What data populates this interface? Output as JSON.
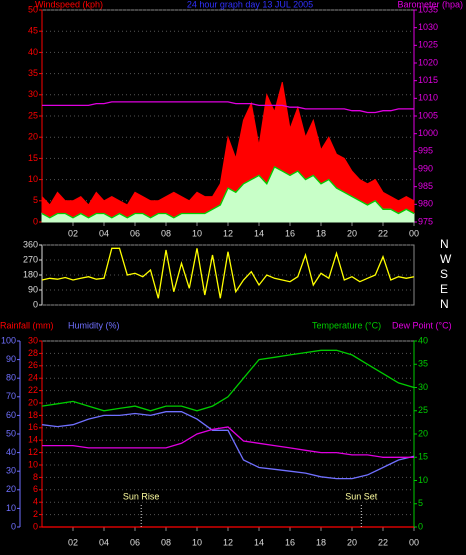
{
  "chart_data": [
    {
      "type": "line",
      "title": "24 hour graph day 13 JUL 2005",
      "ylabel": "Windspeed (kph)",
      "y2label": "Barometer (hpa)",
      "x": [
        0,
        0.5,
        1,
        1.5,
        2,
        2.5,
        3,
        3.5,
        4,
        4.5,
        5,
        5.5,
        6,
        6.5,
        7,
        7.5,
        8,
        8.5,
        9,
        9.5,
        10,
        10.5,
        11,
        11.5,
        12,
        12.5,
        13,
        13.5,
        14,
        14.5,
        15,
        15.5,
        16,
        16.5,
        17,
        17.5,
        18,
        18.5,
        19,
        19.5,
        20,
        20.5,
        21,
        21.5,
        22,
        22.5,
        23,
        23.5,
        24
      ],
      "xlim": [
        0,
        24
      ],
      "xticks": [
        {
          "value": 2,
          "label": "02"
        },
        {
          "value": 4,
          "label": "04"
        },
        {
          "value": 6,
          "label": "06"
        },
        {
          "value": 8,
          "label": "08"
        },
        10,
        12,
        14,
        16,
        18,
        20,
        22,
        {
          "value": 24,
          "label": "00"
        }
      ],
      "ylim": [
        0,
        50
      ],
      "yticks": [
        0,
        5,
        10,
        15,
        20,
        25,
        30,
        35,
        40,
        45,
        50
      ],
      "y2lim": [
        975,
        1035
      ],
      "y2ticks": [
        975,
        980,
        985,
        990,
        995,
        1000,
        1005,
        1010,
        1015,
        1020,
        1025,
        1030,
        1035
      ],
      "grid": true,
      "series": [
        {
          "color": "#ff0000",
          "fill": true,
          "values": [
            6,
            4,
            7,
            5,
            5,
            6,
            4,
            7,
            5,
            6,
            5,
            4,
            7,
            6,
            5,
            5,
            6,
            7,
            6,
            5,
            7,
            6,
            6,
            9,
            20,
            15,
            24,
            28,
            18,
            30,
            26,
            33,
            22,
            27,
            20,
            24,
            17,
            20,
            16,
            15,
            12,
            10,
            9,
            10,
            7,
            6,
            5,
            6,
            5
          ]
        },
        {
          "color": "#c8ffc8",
          "fill": true,
          "values": [
            2,
            1,
            2,
            2,
            1,
            2,
            1,
            2,
            2,
            1,
            2,
            1,
            2,
            2,
            1,
            2,
            2,
            1,
            2,
            2,
            2,
            2,
            3,
            4,
            8,
            7,
            9,
            10,
            11,
            9,
            13,
            12,
            11,
            12,
            10,
            11,
            9,
            10,
            8,
            7,
            6,
            5,
            4,
            5,
            3,
            3,
            2,
            3,
            2
          ]
        },
        {
          "color": "#00cc00",
          "values": [
            2,
            1,
            2,
            2,
            1,
            2,
            1,
            2,
            2,
            1,
            2,
            1,
            2,
            2,
            1,
            2,
            2,
            1,
            2,
            2,
            2,
            2,
            3,
            4,
            8,
            7,
            9,
            10,
            11,
            9,
            13,
            12,
            11,
            12,
            10,
            11,
            9,
            10,
            8,
            7,
            6,
            5,
            4,
            5,
            3,
            3,
            2,
            3,
            2
          ]
        },
        {
          "color": "#e000e0",
          "axis": "y2",
          "values": [
            1008,
            1008,
            1008,
            1008,
            1008,
            1008,
            1008,
            1008.5,
            1008.5,
            1009,
            1009,
            1009,
            1009,
            1009,
            1009,
            1009,
            1009,
            1009,
            1009,
            1009,
            1009,
            1009,
            1009,
            1009,
            1009,
            1008.5,
            1008.5,
            1008.5,
            1008,
            1008,
            1008,
            1008,
            1007.5,
            1007.5,
            1007,
            1007,
            1007,
            1007,
            1007,
            1007,
            1006.5,
            1006.5,
            1006,
            1006,
            1006.5,
            1006.5,
            1007,
            1007,
            1007
          ]
        }
      ]
    },
    {
      "type": "line",
      "x": [
        0,
        0.5,
        1,
        1.5,
        2,
        2.5,
        3,
        3.5,
        4,
        4.5,
        5,
        5.5,
        6,
        6.5,
        7,
        7.5,
        8,
        8.5,
        9,
        9.5,
        10,
        10.5,
        11,
        11.5,
        12,
        12.5,
        13,
        13.5,
        14,
        14.5,
        15,
        15.5,
        16,
        16.5,
        17,
        17.5,
        18,
        18.5,
        19,
        19.5,
        20,
        20.5,
        21,
        21.5,
        22,
        22.5,
        23,
        23.5,
        24
      ],
      "xlim": [
        0,
        24
      ],
      "ylim": [
        0,
        360
      ],
      "yticks": [
        0,
        90,
        180,
        270,
        360
      ],
      "y2lim": [
        0,
        360
      ],
      "y2ticks": [
        {
          "value": 360,
          "label": "N"
        },
        {
          "value": 270,
          "label": "W"
        },
        {
          "value": 180,
          "label": "S"
        },
        {
          "value": 90,
          "label": "E"
        },
        {
          "value": 0,
          "label": "N"
        }
      ],
      "grid": true,
      "series": [
        {
          "color": "#ffff00",
          "values": [
            150,
            160,
            155,
            165,
            150,
            160,
            170,
            155,
            160,
            340,
            340,
            180,
            190,
            170,
            210,
            40,
            330,
            80,
            250,
            100,
            340,
            60,
            300,
            40,
            320,
            80,
            150,
            200,
            120,
            180,
            160,
            150,
            140,
            170,
            300,
            120,
            190,
            160,
            310,
            150,
            170,
            140,
            160,
            180,
            290,
            150,
            170,
            160,
            170
          ]
        }
      ]
    },
    {
      "type": "line",
      "ylabel": "Rainfall (mm)",
      "y3label": "Humidity (%)",
      "y2label": "Temperature (°C)",
      "y2label_b": "Dew Point (°C)",
      "x": [
        0,
        1,
        2,
        3,
        4,
        5,
        6,
        7,
        8,
        9,
        10,
        11,
        12,
        13,
        14,
        15,
        16,
        17,
        18,
        19,
        20,
        21,
        22,
        23,
        24
      ],
      "xlim": [
        0,
        24
      ],
      "xticks": [
        {
          "value": 2,
          "label": "02"
        },
        {
          "value": 4,
          "label": "04"
        },
        {
          "value": 6,
          "label": "06"
        },
        {
          "value": 8,
          "label": "08"
        },
        10,
        12,
        14,
        16,
        18,
        20,
        22,
        {
          "value": 24,
          "label": "00"
        }
      ],
      "ylim": [
        0,
        30
      ],
      "yticks": [
        0,
        2,
        4,
        6,
        8,
        10,
        12,
        14,
        16,
        18,
        20,
        22,
        24,
        26,
        28,
        30
      ],
      "y3lim": [
        0,
        100
      ],
      "y3ticks": [
        0,
        10,
        20,
        30,
        40,
        50,
        60,
        70,
        80,
        90,
        100
      ],
      "y2lim": [
        0,
        40
      ],
      "y2ticks": [
        0,
        5,
        10,
        15,
        20,
        25,
        30,
        35,
        40
      ],
      "grid": true,
      "annotations": [
        {
          "text": "Sun Rise",
          "x": 6.4
        },
        {
          "text": "Sun Set",
          "x": 20.6
        }
      ],
      "series": [
        {
          "color": "#ff0000",
          "values": [
            0,
            0,
            0,
            0,
            0,
            0,
            0,
            0,
            0,
            0,
            0,
            0,
            0,
            0,
            0,
            0,
            0,
            0,
            0,
            0,
            0,
            0,
            0,
            0,
            0
          ]
        },
        {
          "color": "#7070ff",
          "axis": "y3",
          "values": [
            55,
            54,
            55,
            58,
            60,
            60,
            61,
            60,
            62,
            62,
            58,
            52,
            52,
            36,
            32,
            31,
            30,
            29,
            27,
            26,
            26,
            28,
            32,
            36,
            38
          ]
        },
        {
          "color": "#00cc00",
          "axis": "y2",
          "values": [
            26,
            26.5,
            27,
            26,
            25,
            25.5,
            26,
            25,
            26,
            26,
            25,
            26,
            28,
            32,
            36,
            36.5,
            37,
            37.5,
            38,
            38,
            37,
            35,
            33,
            31,
            30
          ]
        },
        {
          "color": "#e000e0",
          "axis": "y2",
          "values": [
            17.5,
            17.5,
            17.5,
            17,
            17,
            17,
            17,
            17,
            17,
            18,
            20,
            21,
            21.5,
            18.5,
            18,
            17.5,
            17,
            16.5,
            16,
            16,
            15.5,
            15.5,
            15,
            15,
            15
          ]
        }
      ]
    }
  ]
}
